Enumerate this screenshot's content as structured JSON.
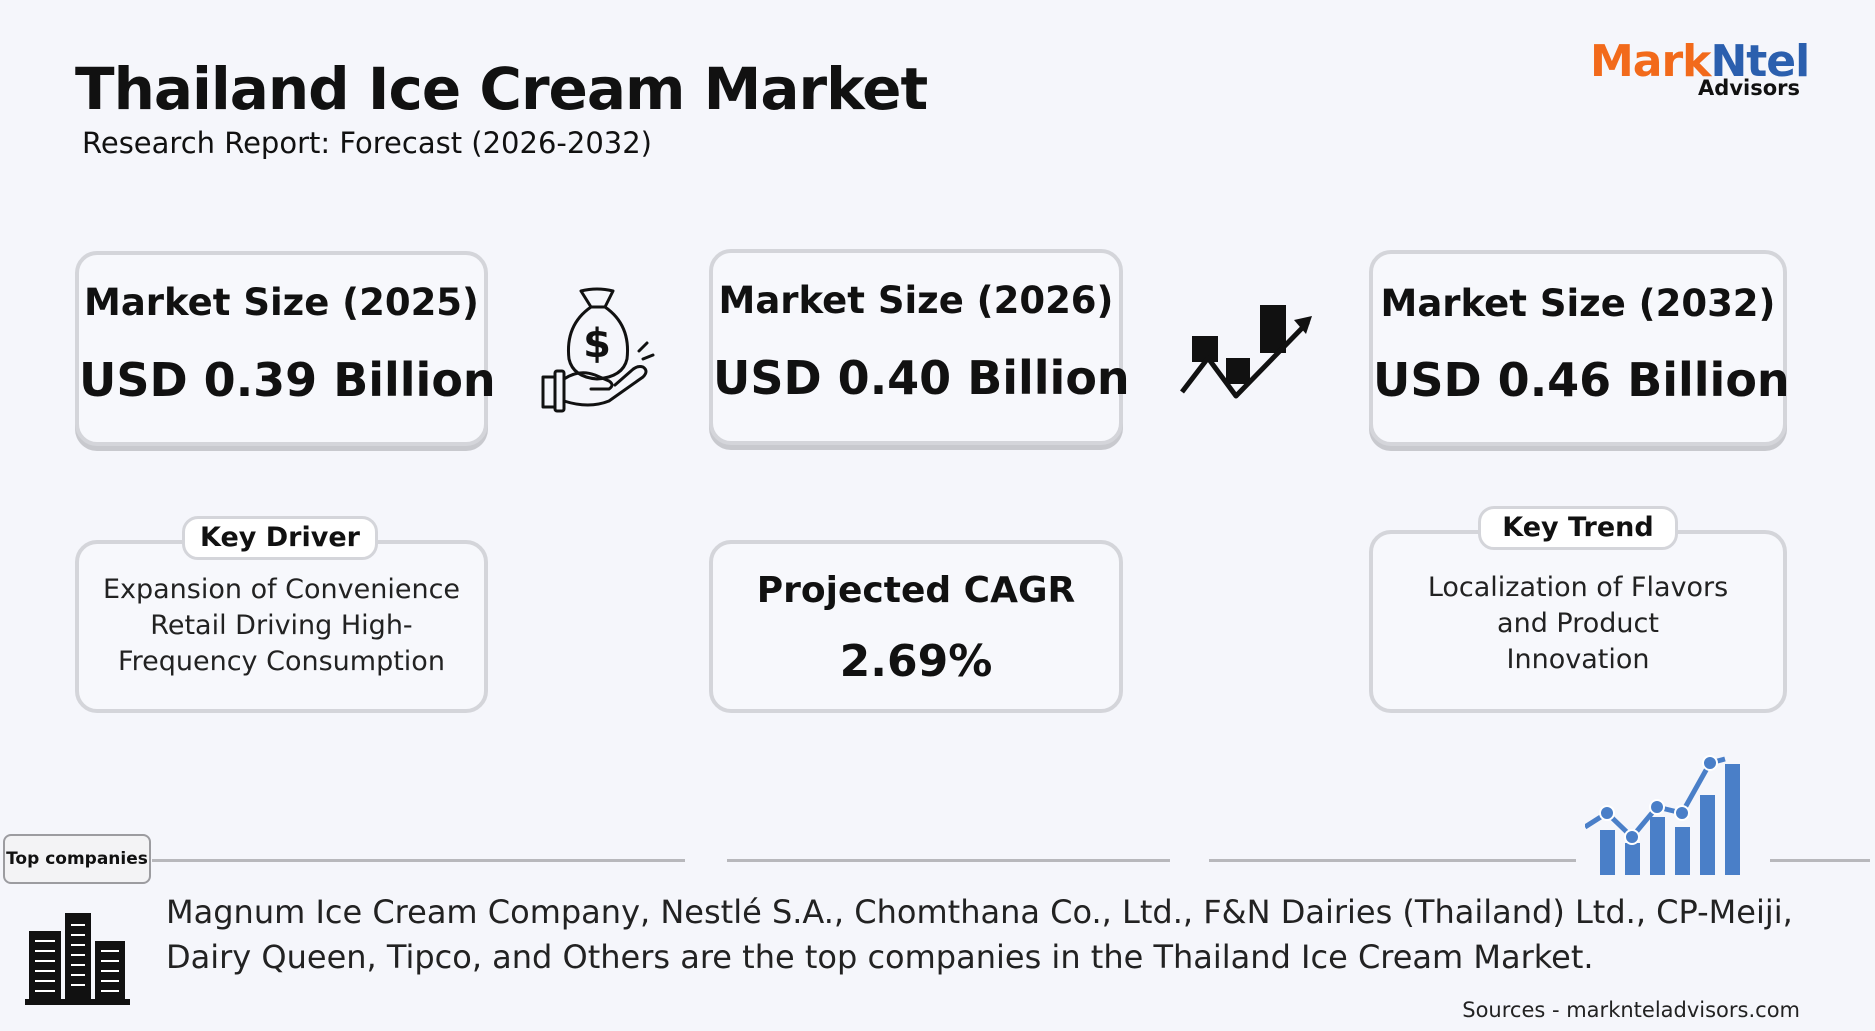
{
  "header": {
    "title": "Thailand Ice Cream Market",
    "subtitle": "Research Report: Forecast (2026-2032)"
  },
  "logo": {
    "mark": "Mark",
    "ntel": "Ntel",
    "advisors": "Advisors",
    "colors": {
      "mark": "#f26a1b",
      "ntel": "#2b5fae"
    }
  },
  "market_cards": [
    {
      "label": "Market Size (2025)",
      "value": "USD 0.39 Billion"
    },
    {
      "label": "Market Size (2026)",
      "value": "USD 0.40 Billion"
    },
    {
      "label": "Market Size (2032)",
      "value": "USD 0.46 Billion"
    }
  ],
  "key_driver": {
    "tag": "Key Driver",
    "lines": [
      "Expansion of Convenience",
      "Retail Driving High-",
      "Frequency Consumption"
    ]
  },
  "cagr": {
    "label": "Projected CAGR",
    "value": "2.69%"
  },
  "key_trend": {
    "tag": "Key Trend",
    "lines": [
      "Localization of Flavors",
      "and Product",
      "Innovation"
    ]
  },
  "companies": {
    "tag": "Top companies",
    "lines": [
      "Magnum Ice Cream Company, Nestlé S.A., Chomthana Co., Ltd., F&N Dairies (Thailand) Ltd., CP-Meiji,",
      "Dairy Queen, Tipco, and Others are the top companies in the Thailand Ice Cream Market."
    ]
  },
  "sources": "Sources - marknteladvisors.com",
  "icons": [
    "money-bag-hand-icon",
    "trend-chart-icon",
    "bar-growth-icon",
    "buildings-icon"
  ],
  "colors": {
    "accent_blue": "#4a7fc8",
    "card_border": "#d4d5da"
  }
}
